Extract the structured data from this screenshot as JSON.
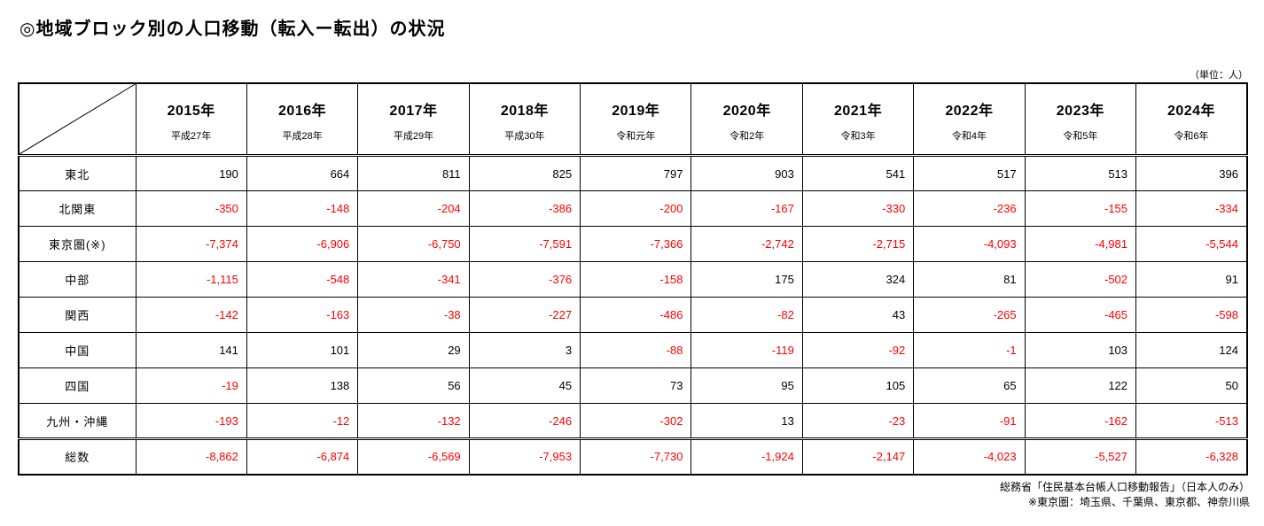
{
  "page": {
    "title": "◎地域ブロック別の人口移動（転入ー転出）の状況",
    "unit_note": "（単位：人）"
  },
  "chart_data": {
    "type": "table",
    "title": "地域ブロック別の人口移動（転入ー転出）の状況",
    "unit": "人",
    "negative_color": "#ff0000",
    "positive_color": "#000000",
    "columns": [
      {
        "year": "2015年",
        "era": "平成27年"
      },
      {
        "year": "2016年",
        "era": "平成28年"
      },
      {
        "year": "2017年",
        "era": "平成29年"
      },
      {
        "year": "2018年",
        "era": "平成30年"
      },
      {
        "year": "2019年",
        "era": "令和元年"
      },
      {
        "year": "2020年",
        "era": "令和2年"
      },
      {
        "year": "2021年",
        "era": "令和3年"
      },
      {
        "year": "2022年",
        "era": "令和4年"
      },
      {
        "year": "2023年",
        "era": "令和5年"
      },
      {
        "year": "2024年",
        "era": "令和6年"
      }
    ],
    "rows": [
      {
        "label": "東北",
        "is_total": false,
        "values": [
          "190",
          "664",
          "811",
          "825",
          "797",
          "903",
          "541",
          "517",
          "513",
          "396"
        ]
      },
      {
        "label": "北関東",
        "is_total": false,
        "values": [
          "-350",
          "-148",
          "-204",
          "-386",
          "-200",
          "-167",
          "-330",
          "-236",
          "-155",
          "-334"
        ]
      },
      {
        "label": "東京圏(※)",
        "is_total": false,
        "values": [
          "-7,374",
          "-6,906",
          "-6,750",
          "-7,591",
          "-7,366",
          "-2,742",
          "-2,715",
          "-4,093",
          "-4,981",
          "-5,544"
        ]
      },
      {
        "label": "中部",
        "is_total": false,
        "values": [
          "-1,115",
          "-548",
          "-341",
          "-376",
          "-158",
          "175",
          "324",
          "81",
          "-502",
          "91"
        ]
      },
      {
        "label": "関西",
        "is_total": false,
        "values": [
          "-142",
          "-163",
          "-38",
          "-227",
          "-486",
          "-82",
          "43",
          "-265",
          "-465",
          "-598"
        ]
      },
      {
        "label": "中国",
        "is_total": false,
        "values": [
          "141",
          "101",
          "29",
          "3",
          "-88",
          "-119",
          "-92",
          "-1",
          "103",
          "124"
        ]
      },
      {
        "label": "四国",
        "is_total": false,
        "values": [
          "-19",
          "138",
          "56",
          "45",
          "73",
          "95",
          "105",
          "65",
          "122",
          "50"
        ]
      },
      {
        "label": "九州・沖縄",
        "is_total": false,
        "values": [
          "-193",
          "-12",
          "-132",
          "-246",
          "-302",
          "13",
          "-23",
          "-91",
          "-162",
          "-513"
        ]
      },
      {
        "label": "総数",
        "is_total": true,
        "values": [
          "-8,862",
          "-6,874",
          "-6,569",
          "-7,953",
          "-7,730",
          "-1,924",
          "-2,147",
          "-4,023",
          "-5,527",
          "-6,328"
        ]
      }
    ]
  },
  "footer": {
    "source": "総務省「住民基本台帳人口移動報告」（日本人のみ）",
    "note": "※東京圏：埼玉県、千葉県、東京都、神奈川県"
  }
}
